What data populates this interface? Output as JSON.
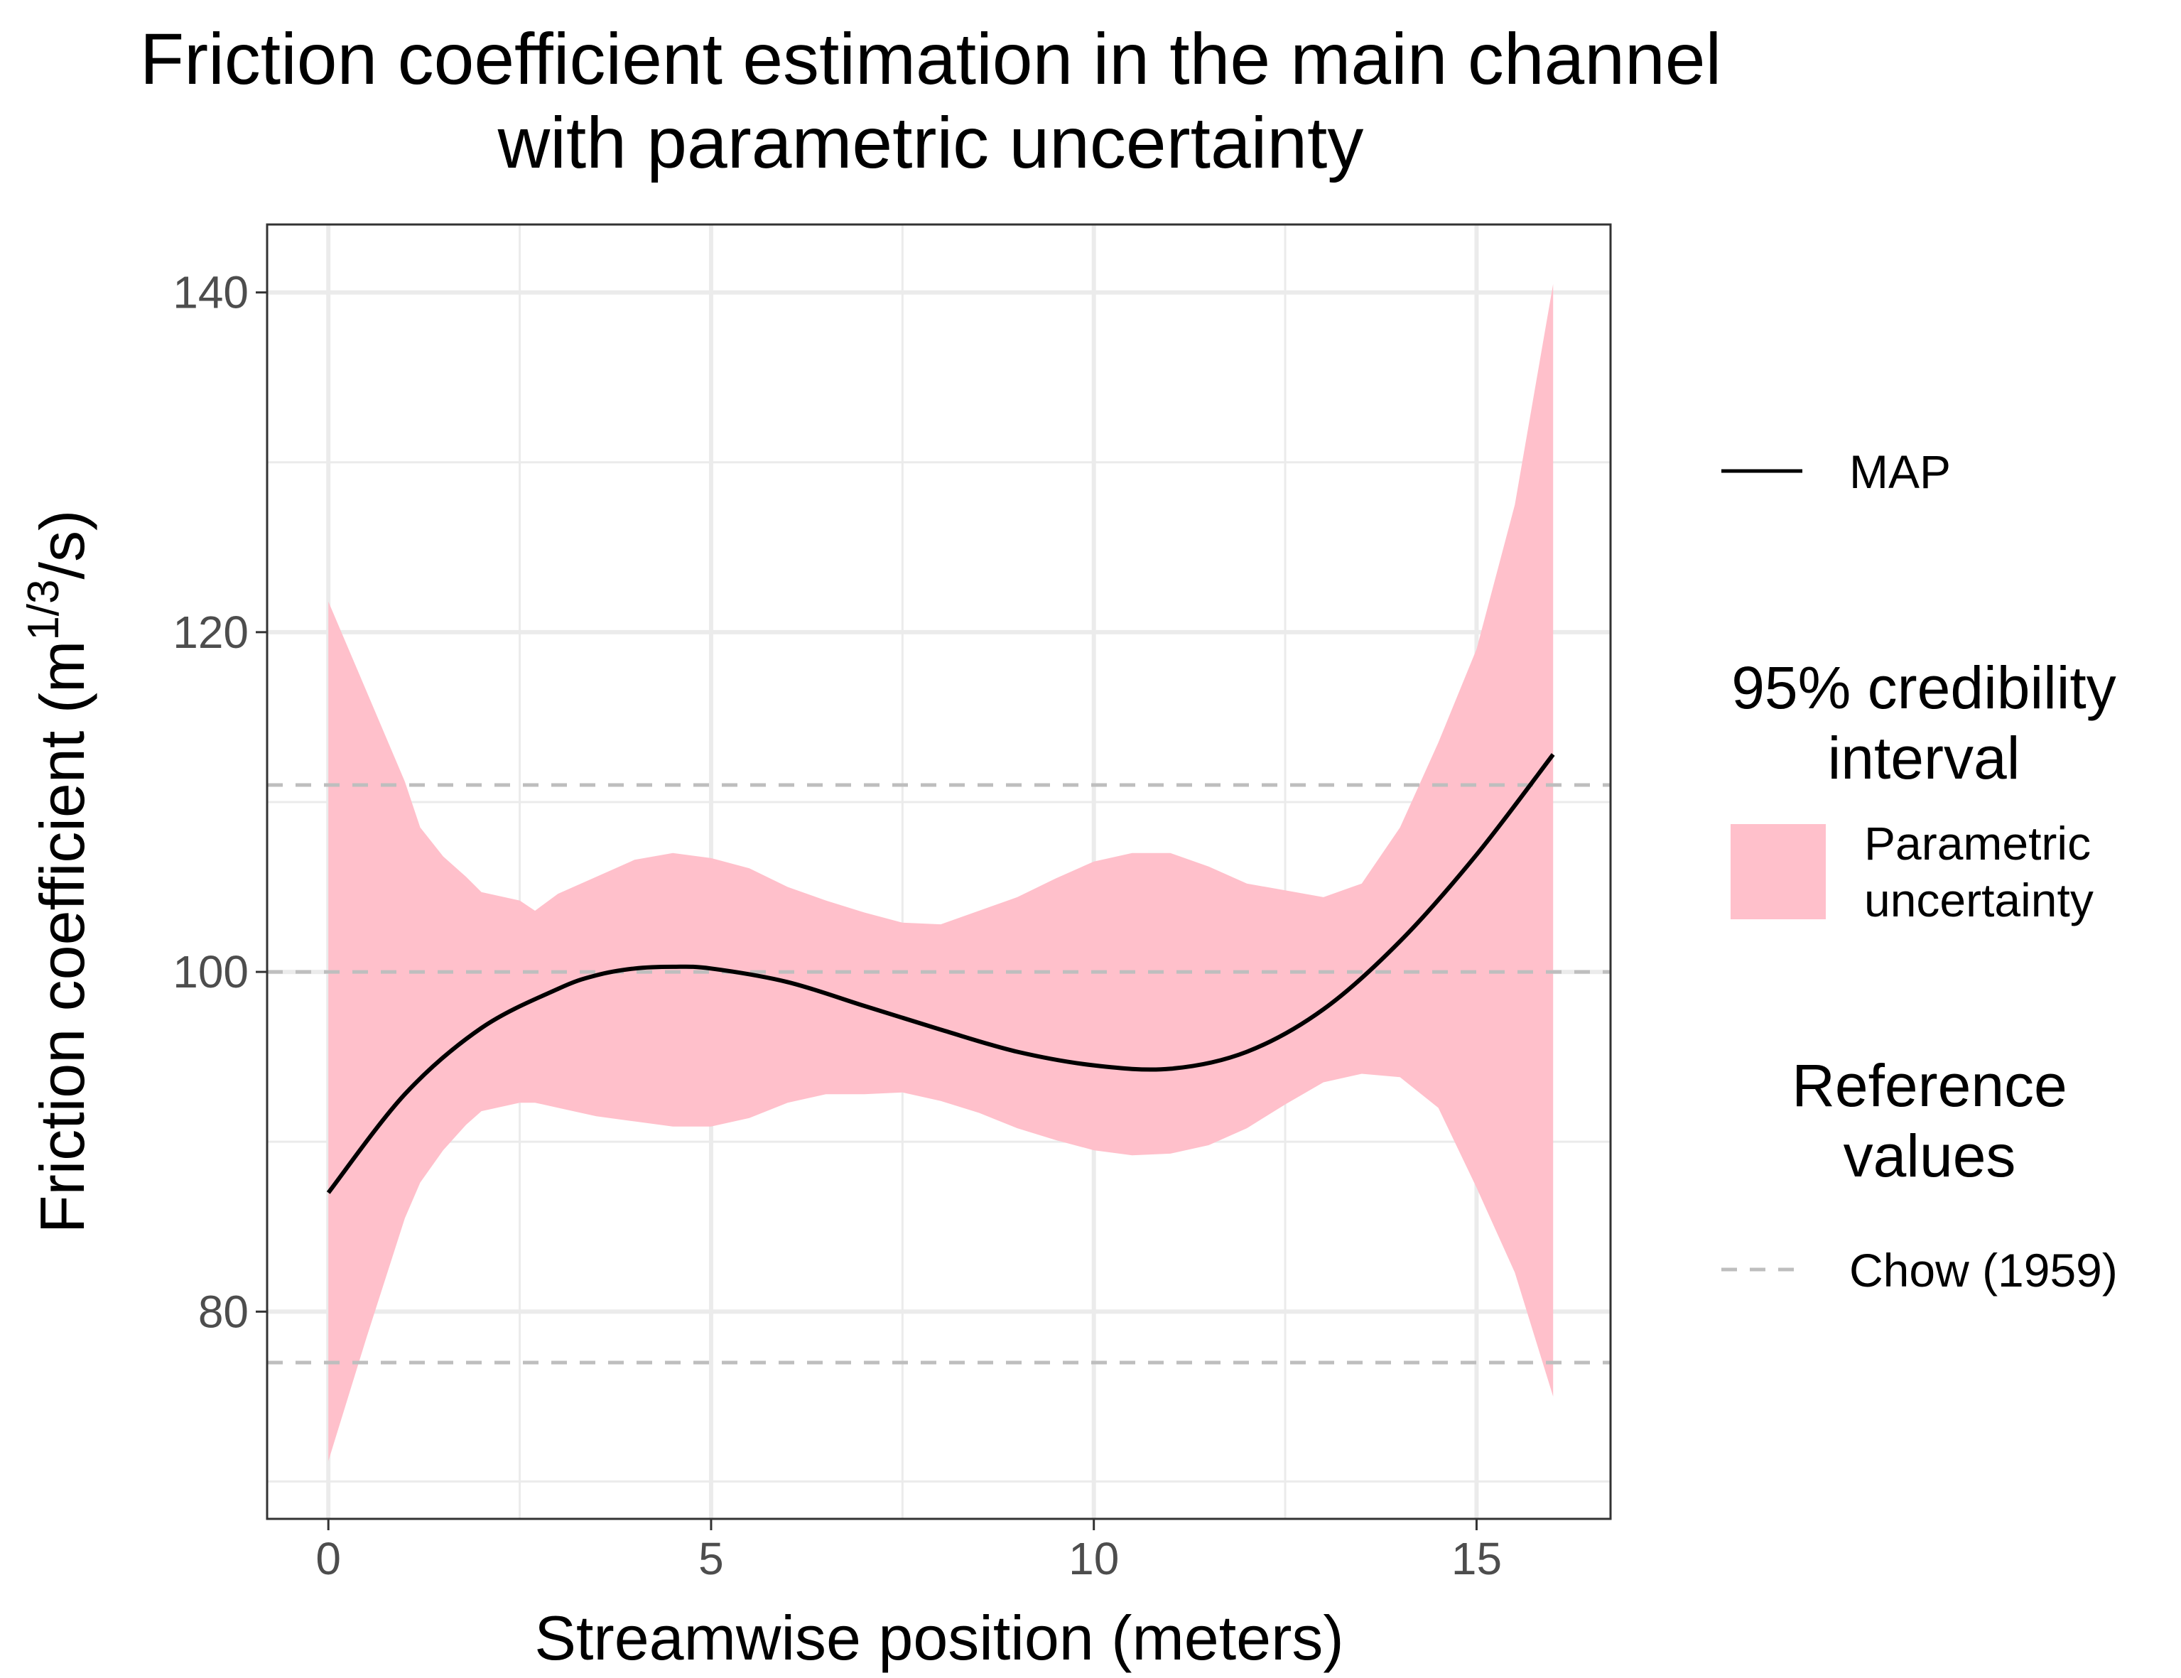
{
  "chart_data": {
    "type": "line",
    "title": [
      "Friction coefficient estimation in the main channel",
      "with parametric uncertainty"
    ],
    "xlabel": "Streamwise position (meters)",
    "ylabel": {
      "base": "Friction coefficient (m",
      "sup": "1/3",
      "tail": "/s)"
    },
    "xlim": [
      -0.8,
      16.75
    ],
    "ylim": [
      67.8,
      144
    ],
    "xticks": [
      0,
      5,
      10,
      15
    ],
    "yticks": [
      80,
      100,
      120,
      140
    ],
    "grid": true,
    "legend_position": "right",
    "series": [
      {
        "name": "MAP",
        "kind": "line",
        "color": "#000000",
        "x": [
          0,
          1,
          2,
          3,
          3.5,
          4,
          4.5,
          5,
          6,
          7,
          8,
          9,
          10,
          11,
          12,
          13,
          14,
          15,
          16
        ],
        "y": [
          87,
          92.8,
          96.7,
          99,
          99.8,
          100.2,
          100.3,
          100.2,
          99.4,
          98,
          96.6,
          95.3,
          94.5,
          94.3,
          95.3,
          97.8,
          101.8,
          106.9,
          112.8
        ]
      }
    ],
    "bands": [
      {
        "name": "Parametric uncertainty",
        "color": "#ffc0cb",
        "x": [
          0,
          0.5,
          1,
          1.2,
          1.5,
          1.8,
          2,
          2.5,
          2.7,
          3,
          3.5,
          4,
          4.5,
          5,
          5.5,
          6,
          6.5,
          7,
          7.5,
          8,
          8.5,
          9,
          9.5,
          10,
          10.5,
          11,
          11.5,
          12,
          12.5,
          13,
          13.5,
          14,
          14.5,
          15,
          15.5,
          16
        ],
        "upper": [
          121.8,
          116.5,
          111.2,
          108.5,
          106.8,
          105.6,
          104.7,
          104.2,
          103.6,
          104.6,
          105.6,
          106.6,
          107,
          106.7,
          106.1,
          105,
          104.2,
          103.5,
          102.9,
          102.8,
          103.6,
          104.4,
          105.5,
          106.5,
          107,
          107,
          106.2,
          105.2,
          104.8,
          104.4,
          105.2,
          108.5,
          113.5,
          119,
          127.5,
          140.5
        ],
        "lower": [
          71.2,
          78.5,
          85.5,
          87.6,
          89.5,
          91,
          91.8,
          92.3,
          92.3,
          92,
          91.5,
          91.2,
          90.9,
          90.9,
          91.4,
          92.3,
          92.8,
          92.8,
          92.9,
          92.4,
          91.7,
          90.8,
          90.1,
          89.5,
          89.2,
          89.3,
          89.8,
          90.8,
          92.2,
          93.5,
          94,
          93.8,
          92,
          87.3,
          82.3,
          75
        ]
      }
    ],
    "reference_lines": {
      "name": "Chow (1959)",
      "color": "#bebebe",
      "y": [
        77,
        100,
        111
      ]
    },
    "legend": {
      "line_label": "MAP",
      "band_title": [
        "95% credibility",
        "interval"
      ],
      "band_label": [
        "Parametric",
        "uncertainty"
      ],
      "ref_title": [
        "Reference",
        "values"
      ],
      "ref_label": "Chow (1959)"
    }
  }
}
